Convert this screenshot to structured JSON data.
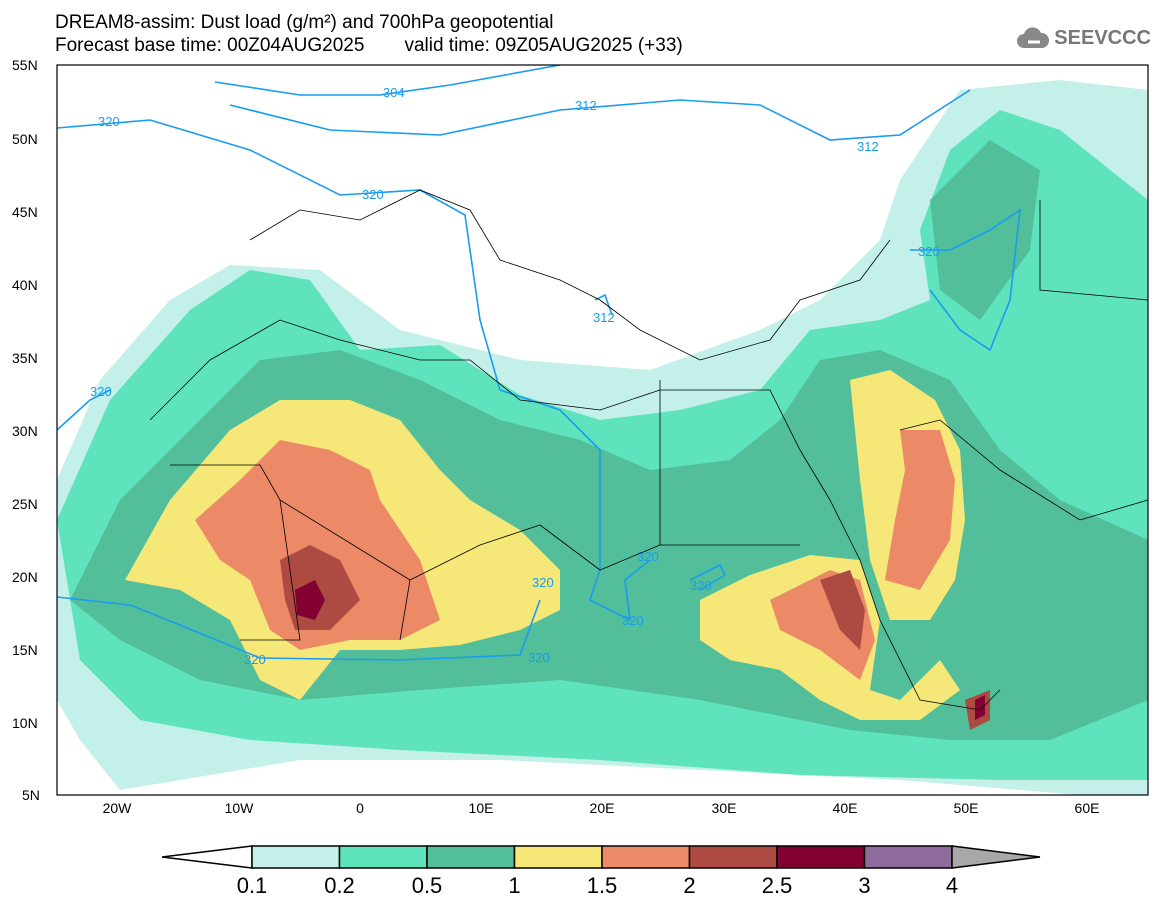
{
  "header": {
    "title": "DREAM8-assim: Dust load (g/m²) and 700hPa geopotential",
    "base_time_label": "Forecast base time: 00Z04AUG2025",
    "valid_time_label": "valid time: 09Z05AUG2025 (+33)",
    "logo": "SEEVCCC"
  },
  "map": {
    "lat_labels": [
      "55N",
      "50N",
      "45N",
      "40N",
      "35N",
      "30N",
      "25N",
      "20N",
      "15N",
      "10N",
      "5N"
    ],
    "lon_labels": [
      "20W",
      "10W",
      "0",
      "10E",
      "20E",
      "30E",
      "40E",
      "50E",
      "60E"
    ],
    "contour_labels": [
      "304",
      "312",
      "312",
      "312",
      "320",
      "320",
      "320",
      "320",
      "320",
      "320",
      "320",
      "320",
      "320",
      "320"
    ]
  },
  "colorbar": {
    "ticks": [
      "0.1",
      "0.2",
      "0.5",
      "1",
      "1.5",
      "2",
      "2.5",
      "3",
      "4"
    ],
    "colors": [
      "#c3f0e8",
      "#5ee3bd",
      "#52bf9a",
      "#f6e779",
      "#ec8a67",
      "#ad4a42",
      "#820032",
      "#8f6a9c"
    ],
    "under_color": "#ffffff",
    "over_color": "#a8a8a8"
  }
}
